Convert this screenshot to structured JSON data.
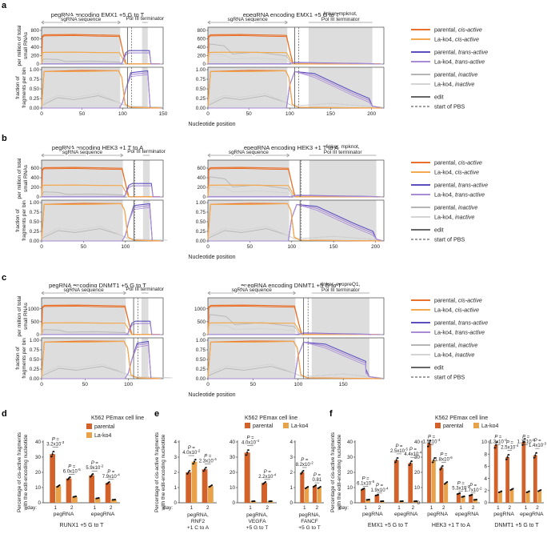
{
  "panel_labels": {
    "a": "a",
    "b": "b",
    "c": "c",
    "d": "d",
    "e": "e",
    "f": "f"
  },
  "common": {
    "xlabel": "Nucleotide position",
    "y_top": "per million of total small RNAs",
    "y_bottom": "fraction of fragments per bin",
    "sg_label": "sgRNA sequence",
    "term_label": "Pol III terminator",
    "bottom_ticks": [
      "0.00",
      "0.25",
      "0.50",
      "0.75",
      "1.00"
    ]
  },
  "legend": [
    {
      "label": "parental, cis-active",
      "color": "#e8702a",
      "dash": false
    },
    {
      "label": "La-ko4, cis-active",
      "color": "#f2a94f",
      "dash": false
    },
    {
      "label": "parental, trans-active",
      "color": "#5b4fc0",
      "dash": false
    },
    {
      "label": "La-ko4, trans-active",
      "color": "#a98bd6",
      "dash": false
    },
    {
      "label": "parental, inactive",
      "color": "#b5b5b5",
      "dash": false
    },
    {
      "label": "La-ko4, inactive",
      "color": "#d3d3d3",
      "dash": false
    },
    {
      "label": "edit",
      "color": "#666666",
      "dash": false
    },
    {
      "label": "start of PBS",
      "color": "#666666",
      "dash": true
    }
  ],
  "colors": {
    "gray_band": "#dddddd",
    "arrow": "#999999",
    "parental": "#d2622a",
    "lako4": "#e8a34a"
  },
  "rows": [
    {
      "panels": [
        {
          "title": "pegRNA encoding EMX1 +5 G to T",
          "xmax": 150,
          "xticks": [
            "0",
            "50",
            "100",
            "150"
          ],
          "ymax": 800,
          "yticks": [
            "0",
            "200",
            "400",
            "600",
            "800"
          ],
          "sg": [
            0,
            97
          ],
          "term": [
            124,
            131
          ],
          "edit": 106,
          "pbs": 111,
          "linker_label": null
        },
        {
          "title": "epegRNA encoding EMX1 +5 G to T",
          "xmax": 215,
          "xticks": [
            "0",
            "50",
            "100",
            "150",
            "200"
          ],
          "ymax": 800,
          "yticks": [
            "0",
            "200",
            "400",
            "600",
            "800"
          ],
          "sg": [
            0,
            97
          ],
          "term": [
            123,
            201
          ],
          "edit": 106,
          "pbs": 111,
          "linker_label": "linker, mpknot, Pol III terminator"
        }
      ]
    },
    {
      "panels": [
        {
          "title": "pegRNA encoding HEK3 +1 T to A",
          "xmax": 145,
          "xticks": [
            "0",
            "50",
            "100"
          ],
          "ymax": 700,
          "yticks": [
            "0",
            "200",
            "400",
            "600"
          ],
          "sg": [
            0,
            97
          ],
          "term": [
            121,
            129
          ],
          "edit": 110,
          "pbs": 111,
          "linker_label": null
        },
        {
          "title": "epegRNA encoding HEK3 +1 T to A",
          "xmax": 210,
          "xticks": [
            "0",
            "50",
            "100",
            "150",
            "200"
          ],
          "ymax": 700,
          "yticks": [
            "0",
            "200",
            "400",
            "600"
          ],
          "sg": [
            0,
            97
          ],
          "term": [
            121,
            201
          ],
          "edit": 110,
          "pbs": 111,
          "linker_label": "linker, mpknot, Pol III terminator"
        }
      ]
    },
    {
      "panels": [
        {
          "title": "pegRNA encoding DNMT1 +5 G to T",
          "xmax": 140,
          "xticks": [
            "0",
            "50",
            "100"
          ],
          "ymax": 1300,
          "yticks": [
            "0",
            "500",
            "1000"
          ],
          "sg": [
            0,
            97
          ],
          "term": [
            115,
            123
          ],
          "edit": 106,
          "pbs": 111,
          "linker_label": null
        },
        {
          "title": "epegRNA encoding DNMT1 +5 G to T",
          "xmax": 195,
          "xticks": [
            "0",
            "50",
            "100",
            "150"
          ],
          "ymax": 1300,
          "yticks": [
            "0",
            "500",
            "1000"
          ],
          "sg": [
            0,
            97
          ],
          "term": [
            115,
            179
          ],
          "edit": 106,
          "pbs": 111,
          "linker_label": "linker, evopreQ1, Pol III terminator"
        }
      ]
    }
  ],
  "bar_ylabel": "Percentage of cis-active fragments with the edit-encoding nucleotide",
  "cell_line_title": "K562 PEmax cell line",
  "legend_bar": {
    "parental": "parental",
    "lako4": "La-ko4"
  },
  "day_label": "day:",
  "chart_data": [
    {
      "id": "d",
      "type": "bar",
      "title": "RUNX1 +5 G to T",
      "ylim": [
        0,
        40
      ],
      "yticks": [
        "0",
        "10",
        "20",
        "30",
        "40"
      ],
      "groups": [
        {
          "name": "pegRNA",
          "days": [
            1,
            2
          ],
          "parental": [
            32,
            16
          ],
          "lako4": [
            11,
            4
          ]
        },
        {
          "name": "epegRNA",
          "days": [
            1,
            2
          ],
          "parental": [
            18,
            13
          ],
          "lako4": [
            3,
            2
          ]
        }
      ],
      "pvalues": [
        "P = 3.2x10-3",
        "P = 6.0x10-5",
        "P = 5.9x10-2",
        "P = 7.9x10-4"
      ]
    },
    {
      "id": "e1",
      "type": "bar",
      "title": "pegRNA, RNF2 +1 C to A",
      "ylim": [
        0,
        4
      ],
      "yticks": [
        "0",
        "1",
        "2",
        "3",
        "4"
      ],
      "groups": [
        {
          "name": "",
          "days": [
            1,
            2
          ],
          "parental": [
            2.0,
            2.2
          ],
          "lako4": [
            2.7,
            1.1
          ]
        }
      ],
      "pvalues": [
        "P = 4.0x10-2",
        "P = 2.3x10-4"
      ]
    },
    {
      "id": "e2",
      "type": "bar",
      "title": "pegRNA, VEGFA +5 G to T",
      "ylim": [
        0,
        40
      ],
      "yticks": [
        "0",
        "10",
        "20",
        "30",
        "40"
      ],
      "groups": [
        {
          "name": "",
          "days": [
            1,
            2
          ],
          "parental": [
            33,
            13
          ],
          "lako4": [
            1,
            1
          ]
        }
      ],
      "pvalues": [
        "P = 4.0x10-4",
        "P = 2.2x10-4"
      ]
    },
    {
      "id": "e3",
      "type": "bar",
      "title": "pegRNA, FANCF +5 G to T",
      "ylim": [
        0,
        4
      ],
      "yticks": [
        "0",
        "1",
        "2",
        "3",
        "4"
      ],
      "groups": [
        {
          "name": "",
          "days": [
            1,
            2
          ],
          "parental": [
            2.0,
            1.1
          ],
          "lako4": [
            1.0,
            1.0
          ]
        }
      ],
      "pvalues": [
        "P = 8.2x10-2",
        "P = 0.81"
      ]
    },
    {
      "id": "f1",
      "type": "bar",
      "title": "EMX1 +5 G to T",
      "ylim": [
        0,
        40
      ],
      "yticks": [
        "0",
        "10",
        "20",
        "30",
        "40"
      ],
      "groups": [
        {
          "name": "pegRNA",
          "days": [
            1,
            2
          ],
          "parental": [
            9,
            5
          ],
          "lako4": [
            2,
            1
          ]
        },
        {
          "name": "epegRNA",
          "days": [
            1,
            2
          ],
          "parental": [
            28,
            26
          ],
          "lako4": [
            1,
            1
          ]
        }
      ],
      "pvalues": [
        "P = 6.1x10-5",
        "P = 1.9x10-4",
        "P = 2.5x10-5",
        "P = 4.4x10-4"
      ]
    },
    {
      "id": "f2",
      "type": "bar",
      "title": "HEK3 +1 T to A",
      "ylim": [
        0,
        40
      ],
      "yticks": [
        "0",
        "10",
        "20",
        "30",
        "40"
      ],
      "groups": [
        {
          "name": "pegRNA",
          "days": [
            1,
            2
          ],
          "parental": [
            39,
            23
          ],
          "lako4": [
            28,
            13
          ]
        },
        {
          "name": "epegRNA",
          "days": [
            1,
            2
          ],
          "parental": [
            6,
            5
          ],
          "lako4": [
            4,
            2
          ]
        }
      ],
      "pvalues": [
        "P = 1.5x10-4",
        "P = 1.8x10-6",
        "P = 5.3x10-3",
        "P = 1.7x10-2"
      ]
    },
    {
      "id": "f3",
      "type": "bar",
      "title": "DNMT1 +5 G to T",
      "ylim": [
        0,
        10
      ],
      "yticks": [
        "0",
        "2",
        "4",
        "6",
        "8",
        "10"
      ],
      "groups": [
        {
          "name": "pegRNA",
          "days": [
            1,
            2
          ],
          "parental": [
            9.5,
            7.5
          ],
          "lako4": [
            1.8,
            2.2
          ]
        },
        {
          "name": "epegRNA",
          "days": [
            1,
            2
          ],
          "parental": [
            10.0,
            7.8
          ],
          "lako4": [
            1.8,
            2.0
          ]
        }
      ],
      "pvalues": [
        "P = 1.3x10-2",
        "P = 2.5x10-4",
        "P = 1.1x10-2",
        "P = 1.4x10-3"
      ]
    }
  ]
}
